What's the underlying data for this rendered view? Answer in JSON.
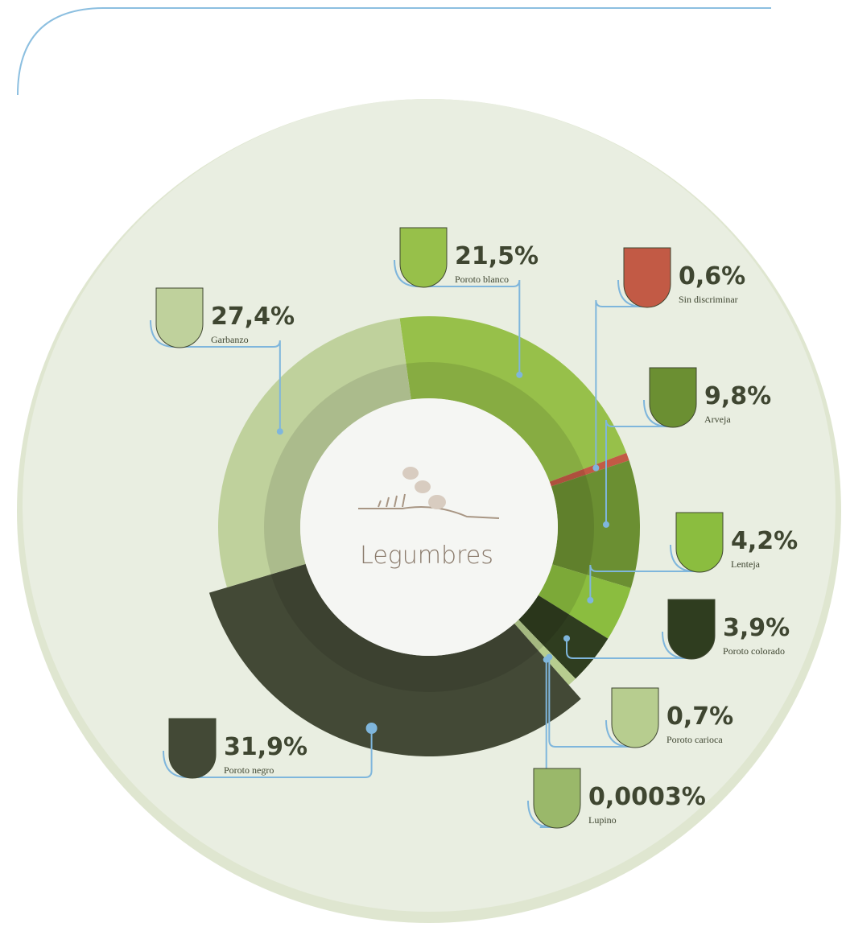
{
  "chart_data": {
    "type": "pie",
    "center_label": "Legumbres",
    "categories": [
      "Poroto blanco",
      "Sin discriminar",
      "Arveja",
      "Lenteja",
      "Poroto colorado",
      "Poroto carioca",
      "Lupino",
      "Poroto negro",
      "Garbanzo"
    ],
    "values": [
      21.5,
      0.6,
      9.8,
      4.2,
      3.9,
      0.7,
      0.0003,
      31.9,
      27.4
    ],
    "value_labels": [
      "21,5%",
      "0,6%",
      "9,8%",
      "4,2%",
      "3,9%",
      "0,7%",
      "0,0003%",
      "31,9%",
      "27,4%"
    ],
    "colors": [
      "#97c04a",
      "#c25a45",
      "#6b8f32",
      "#8bbd3f",
      "#2f3d1f",
      "#b7cd8f",
      "#9ab86a",
      "#434936",
      "#bfd19c"
    ]
  }
}
